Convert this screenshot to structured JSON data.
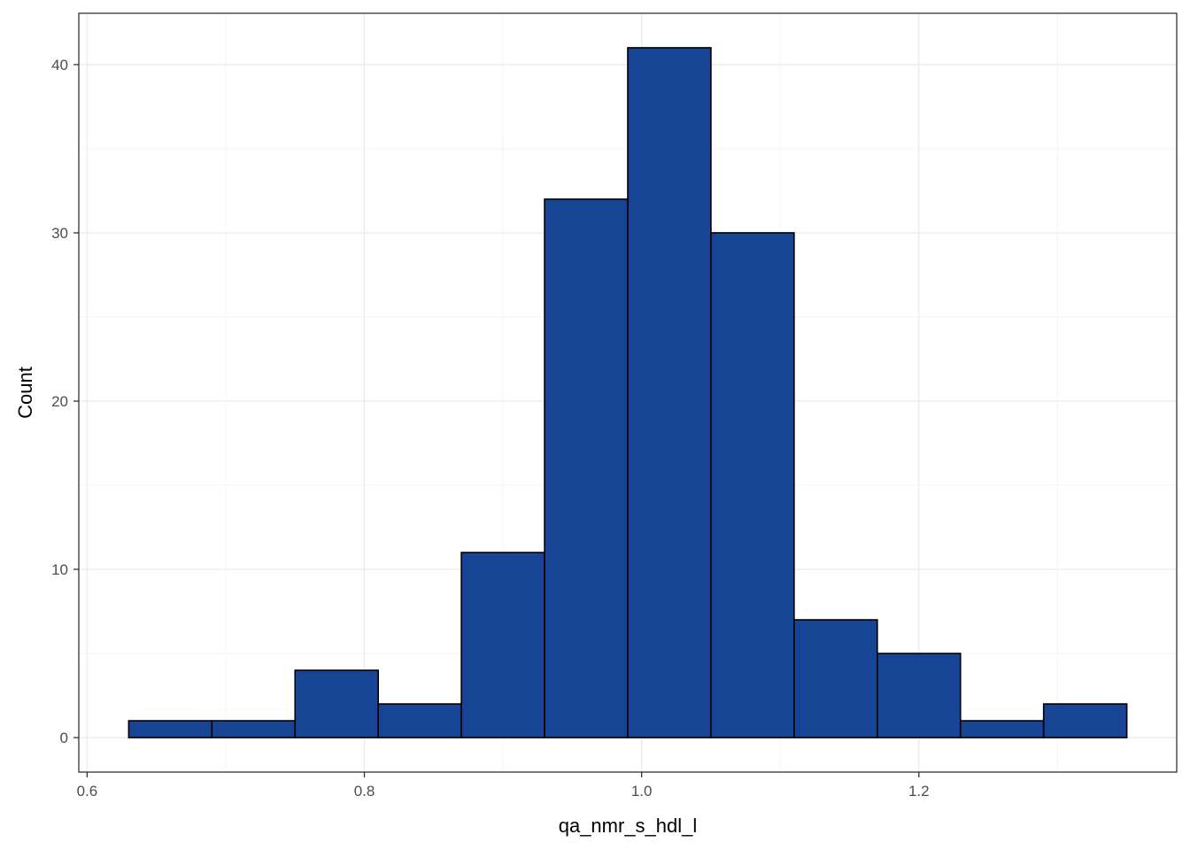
{
  "chart_data": {
    "type": "bar",
    "subtype": "histogram",
    "xlabel": "qa_nmr_s_hdl_l",
    "ylabel": "Count",
    "bins": [
      {
        "x0": 0.63,
        "x1": 0.69,
        "count": 1
      },
      {
        "x0": 0.69,
        "x1": 0.75,
        "count": 1
      },
      {
        "x0": 0.75,
        "x1": 0.81,
        "count": 4
      },
      {
        "x0": 0.81,
        "x1": 0.87,
        "count": 2
      },
      {
        "x0": 0.87,
        "x1": 0.93,
        "count": 11
      },
      {
        "x0": 0.93,
        "x1": 0.99,
        "count": 32
      },
      {
        "x0": 0.99,
        "x1": 1.05,
        "count": 41
      },
      {
        "x0": 1.05,
        "x1": 1.11,
        "count": 30
      },
      {
        "x0": 1.11,
        "x1": 1.17,
        "count": 7
      },
      {
        "x0": 1.17,
        "x1": 1.23,
        "count": 5
      },
      {
        "x0": 1.23,
        "x1": 1.29,
        "count": 1
      },
      {
        "x0": 1.29,
        "x1": 1.35,
        "count": 2
      }
    ],
    "xlim": [
      0.594,
      1.386
    ],
    "ylim": [
      -2.05,
      43.05
    ],
    "x_ticks": [
      0.6,
      0.8,
      1.0,
      1.2
    ],
    "x_tick_labels": [
      "0.6",
      "0.8",
      "1.0",
      "1.2"
    ],
    "y_ticks": [
      0,
      10,
      20,
      30,
      40
    ],
    "y_tick_labels": [
      "0",
      "10",
      "20",
      "30",
      "40"
    ],
    "grid": true,
    "legend": "none",
    "colors": {
      "bar_fill": "#184496",
      "bar_outline": "#000000",
      "grid_major": "#EBEBEB",
      "grid_minor": "#F3F3F3",
      "panel_border": "#333333",
      "background": "#FFFFFF"
    }
  }
}
